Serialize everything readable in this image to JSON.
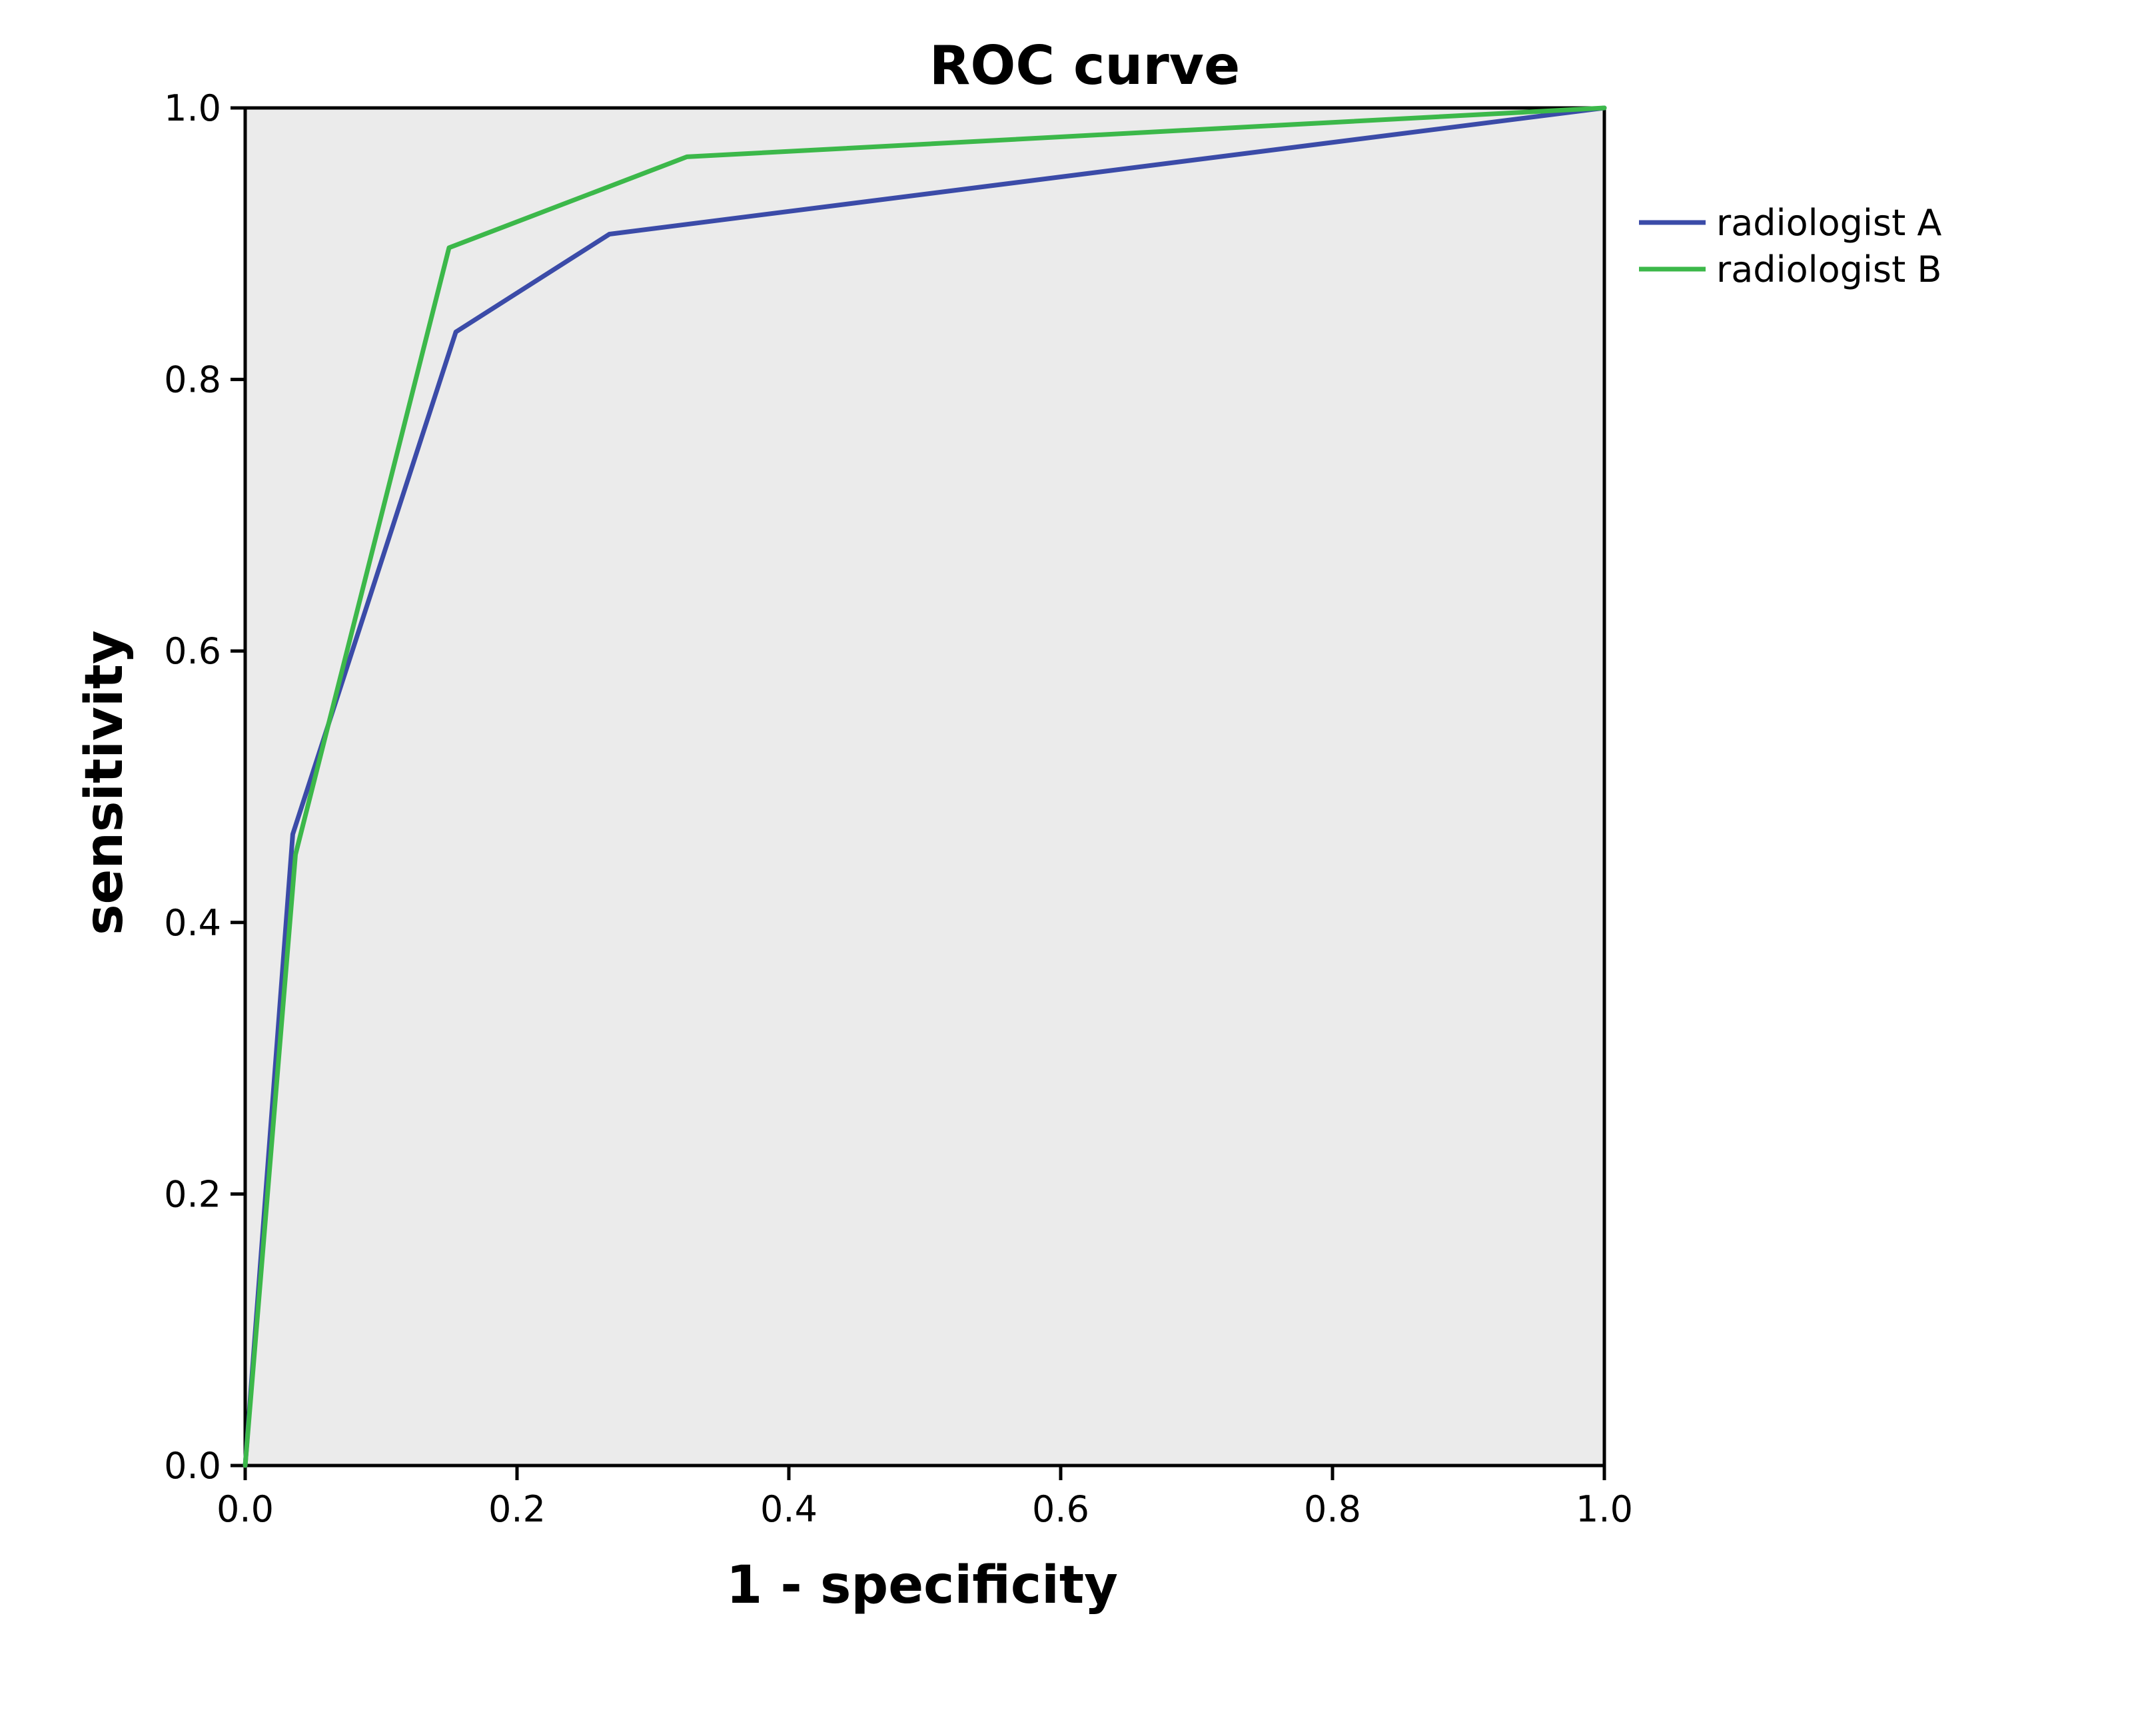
{
  "chart_data": {
    "type": "line",
    "title": "ROC curve",
    "xlabel": "1 - specificity",
    "ylabel": "sensitivity",
    "xlim": [
      0,
      1
    ],
    "ylim": [
      0,
      1
    ],
    "xticks": [
      "0.0",
      "0.2",
      "0.4",
      "0.6",
      "0.8",
      "1.0"
    ],
    "yticks": [
      "0.0",
      "0.2",
      "0.4",
      "0.6",
      "0.8",
      "1.0"
    ],
    "grid": false,
    "legend_position": "right",
    "plot_background": "#ebebeb",
    "series": [
      {
        "name": "radiologist A",
        "color": "#3b4ba8",
        "x": [
          0.0,
          0.035,
          0.155,
          0.268,
          1.0
        ],
        "y": [
          0.0,
          0.465,
          0.835,
          0.907,
          1.0
        ]
      },
      {
        "name": "radiologist B",
        "color": "#3cb84a",
        "x": [
          0.0,
          0.037,
          0.15,
          0.325,
          1.0
        ],
        "y": [
          0.0,
          0.45,
          0.897,
          0.964,
          1.0
        ]
      }
    ]
  }
}
